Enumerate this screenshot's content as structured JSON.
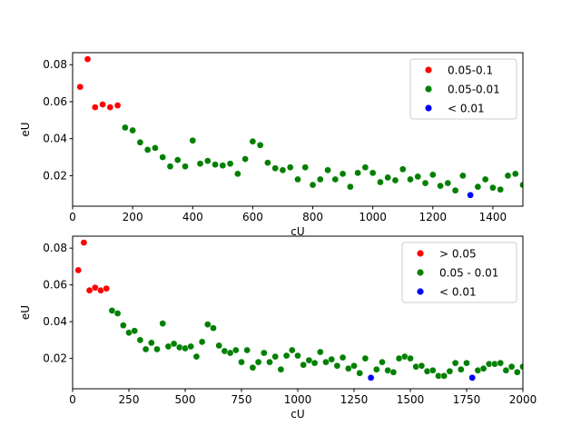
{
  "colors": {
    "red": "#ff0000",
    "green": "#008000",
    "blue": "#0000ff"
  },
  "chart_data": [
    {
      "type": "scatter",
      "title": "",
      "xlabel": "cU",
      "ylabel": "eU",
      "xlim": [
        0,
        1500
      ],
      "ylim": [
        0.0035,
        0.0865
      ],
      "xticks": [
        0,
        200,
        400,
        600,
        800,
        1000,
        1200,
        1400
      ],
      "yticks": [
        0.02,
        0.04,
        0.06,
        0.08
      ],
      "yticklabels": [
        "0.02",
        "0.04",
        "0.06",
        "0.08"
      ],
      "grid": false,
      "legend_position": "top-right",
      "series": [
        {
          "name": "0.05-0.1",
          "color": "red",
          "points": [
            [
              25,
              0.068
            ],
            [
              50,
              0.083
            ],
            [
              75,
              0.057
            ],
            [
              100,
              0.0585
            ],
            [
              125,
              0.057
            ],
            [
              150,
              0.058
            ]
          ]
        },
        {
          "name": "0.05-0.01",
          "color": "green",
          "points": [
            [
              175,
              0.046
            ],
            [
              200,
              0.0445
            ],
            [
              225,
              0.038
            ],
            [
              250,
              0.034
            ],
            [
              275,
              0.035
            ],
            [
              300,
              0.03
            ],
            [
              325,
              0.025
            ],
            [
              350,
              0.0285
            ],
            [
              375,
              0.025
            ],
            [
              400,
              0.039
            ],
            [
              425,
              0.0265
            ],
            [
              450,
              0.028
            ],
            [
              475,
              0.026
            ],
            [
              500,
              0.0255
            ],
            [
              525,
              0.0265
            ],
            [
              550,
              0.021
            ],
            [
              575,
              0.029
            ],
            [
              600,
              0.0385
            ],
            [
              625,
              0.0365
            ],
            [
              650,
              0.027
            ],
            [
              675,
              0.024
            ],
            [
              700,
              0.023
            ],
            [
              725,
              0.0245
            ],
            [
              750,
              0.018
            ],
            [
              775,
              0.0245
            ],
            [
              800,
              0.015
            ],
            [
              825,
              0.018
            ],
            [
              850,
              0.023
            ],
            [
              875,
              0.018
            ],
            [
              900,
              0.021
            ],
            [
              925,
              0.014
            ],
            [
              950,
              0.0215
            ],
            [
              975,
              0.0245
            ],
            [
              1000,
              0.0215
            ],
            [
              1025,
              0.0165
            ],
            [
              1050,
              0.019
            ],
            [
              1075,
              0.0175
            ],
            [
              1100,
              0.0235
            ],
            [
              1125,
              0.018
            ],
            [
              1150,
              0.0195
            ],
            [
              1175,
              0.016
            ],
            [
              1200,
              0.0205
            ],
            [
              1225,
              0.0145
            ],
            [
              1250,
              0.016
            ],
            [
              1275,
              0.012
            ],
            [
              1300,
              0.02
            ],
            [
              1350,
              0.014
            ],
            [
              1375,
              0.018
            ],
            [
              1400,
              0.0135
            ],
            [
              1425,
              0.0125
            ],
            [
              1450,
              0.02
            ],
            [
              1475,
              0.021
            ],
            [
              1500,
              0.015
            ]
          ]
        },
        {
          "name": "< 0.01",
          "color": "blue",
          "points": [
            [
              1325,
              0.0095
            ]
          ]
        }
      ]
    },
    {
      "type": "scatter",
      "title": "",
      "xlabel": "cU",
      "ylabel": "eU",
      "xlim": [
        0,
        2000
      ],
      "ylim": [
        0.0035,
        0.0865
      ],
      "xticks": [
        0,
        250,
        500,
        750,
        1000,
        1250,
        1500,
        1750,
        2000
      ],
      "yticks": [
        0.02,
        0.04,
        0.06,
        0.08
      ],
      "yticklabels": [
        "0.02",
        "0.04",
        "0.06",
        "0.08"
      ],
      "grid": false,
      "legend_position": "top-right",
      "series": [
        {
          "name": "> 0.05",
          "color": "red",
          "points": [
            [
              25,
              0.068
            ],
            [
              50,
              0.083
            ],
            [
              75,
              0.057
            ],
            [
              100,
              0.0585
            ],
            [
              125,
              0.057
            ],
            [
              150,
              0.058
            ]
          ]
        },
        {
          "name": "0.05 - 0.01",
          "color": "green",
          "points": [
            [
              175,
              0.046
            ],
            [
              200,
              0.0445
            ],
            [
              225,
              0.038
            ],
            [
              250,
              0.034
            ],
            [
              275,
              0.035
            ],
            [
              300,
              0.03
            ],
            [
              325,
              0.025
            ],
            [
              350,
              0.0285
            ],
            [
              375,
              0.025
            ],
            [
              400,
              0.039
            ],
            [
              425,
              0.0265
            ],
            [
              450,
              0.028
            ],
            [
              475,
              0.026
            ],
            [
              500,
              0.0255
            ],
            [
              525,
              0.0265
            ],
            [
              550,
              0.021
            ],
            [
              575,
              0.029
            ],
            [
              600,
              0.0385
            ],
            [
              625,
              0.0365
            ],
            [
              650,
              0.027
            ],
            [
              675,
              0.024
            ],
            [
              700,
              0.023
            ],
            [
              725,
              0.0245
            ],
            [
              750,
              0.018
            ],
            [
              775,
              0.0245
            ],
            [
              800,
              0.015
            ],
            [
              825,
              0.018
            ],
            [
              850,
              0.023
            ],
            [
              875,
              0.018
            ],
            [
              900,
              0.021
            ],
            [
              925,
              0.014
            ],
            [
              950,
              0.0215
            ],
            [
              975,
              0.0245
            ],
            [
              1000,
              0.0215
            ],
            [
              1025,
              0.0165
            ],
            [
              1050,
              0.019
            ],
            [
              1075,
              0.0175
            ],
            [
              1100,
              0.0235
            ],
            [
              1125,
              0.018
            ],
            [
              1150,
              0.0195
            ],
            [
              1175,
              0.016
            ],
            [
              1200,
              0.0205
            ],
            [
              1225,
              0.0145
            ],
            [
              1250,
              0.016
            ],
            [
              1275,
              0.012
            ],
            [
              1300,
              0.02
            ],
            [
              1350,
              0.014
            ],
            [
              1375,
              0.018
            ],
            [
              1400,
              0.0135
            ],
            [
              1425,
              0.0125
            ],
            [
              1450,
              0.02
            ],
            [
              1475,
              0.021
            ],
            [
              1500,
              0.02
            ],
            [
              1525,
              0.0155
            ],
            [
              1550,
              0.016
            ],
            [
              1575,
              0.013
            ],
            [
              1600,
              0.0135
            ],
            [
              1625,
              0.0105
            ],
            [
              1650,
              0.0105
            ],
            [
              1675,
              0.013
            ],
            [
              1700,
              0.0175
            ],
            [
              1725,
              0.014
            ],
            [
              1750,
              0.0175
            ],
            [
              1800,
              0.0135
            ],
            [
              1825,
              0.0145
            ],
            [
              1850,
              0.017
            ],
            [
              1875,
              0.017
            ],
            [
              1900,
              0.0175
            ],
            [
              1925,
              0.0135
            ],
            [
              1950,
              0.0155
            ],
            [
              1975,
              0.0125
            ],
            [
              2000,
              0.0155
            ]
          ]
        },
        {
          "name": "< 0.01",
          "color": "blue",
          "points": [
            [
              1325,
              0.0095
            ],
            [
              1775,
              0.0095
            ]
          ]
        }
      ]
    }
  ]
}
